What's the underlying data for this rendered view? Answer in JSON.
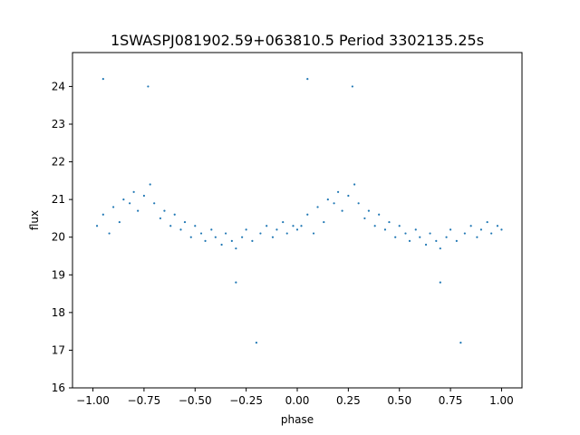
{
  "chart_data": {
    "type": "scatter",
    "title": "1SWASPJ081902.59+063810.5 Period 3302135.25s",
    "xlabel": "phase",
    "ylabel": "flux",
    "xlim": [
      -1.1,
      1.1
    ],
    "ylim": [
      16,
      24.9
    ],
    "xticks": [
      -1.0,
      -0.75,
      -0.5,
      -0.25,
      0.0,
      0.25,
      0.5,
      0.75,
      1.0
    ],
    "xtick_labels": [
      "−1.00",
      "−0.75",
      "−0.50",
      "−0.25",
      "0.00",
      "0.25",
      "0.50",
      "0.75",
      "1.00"
    ],
    "yticks": [
      16,
      17,
      18,
      19,
      20,
      21,
      22,
      23,
      24
    ],
    "ytick_labels": [
      "16",
      "17",
      "18",
      "19",
      "20",
      "21",
      "22",
      "23",
      "24"
    ],
    "grid": false,
    "legend": "none",
    "marker_color": "#1f77b4",
    "series": [
      {
        "points": [
          [
            -0.98,
            20.3
          ],
          [
            -0.95,
            20.6
          ],
          [
            -0.92,
            20.1
          ],
          [
            -0.9,
            20.8
          ],
          [
            -0.87,
            20.4
          ],
          [
            -0.85,
            21.0
          ],
          [
            -0.82,
            20.9
          ],
          [
            -0.8,
            21.2
          ],
          [
            -0.78,
            20.7
          ],
          [
            -0.75,
            21.1
          ],
          [
            -0.72,
            21.4
          ],
          [
            -0.7,
            20.9
          ],
          [
            -0.67,
            20.5
          ],
          [
            -0.65,
            20.7
          ],
          [
            -0.62,
            20.3
          ],
          [
            -0.6,
            20.6
          ],
          [
            -0.57,
            20.2
          ],
          [
            -0.55,
            20.4
          ],
          [
            -0.52,
            20.0
          ],
          [
            -0.5,
            20.3
          ],
          [
            -0.47,
            20.1
          ],
          [
            -0.45,
            19.9
          ],
          [
            -0.42,
            20.2
          ],
          [
            -0.4,
            20.0
          ],
          [
            -0.37,
            19.8
          ],
          [
            -0.35,
            20.1
          ],
          [
            -0.32,
            19.9
          ],
          [
            -0.3,
            19.7
          ],
          [
            -0.27,
            20.0
          ],
          [
            -0.25,
            20.2
          ],
          [
            -0.22,
            19.9
          ],
          [
            -0.2,
            17.2
          ],
          [
            -0.18,
            20.1
          ],
          [
            -0.15,
            20.3
          ],
          [
            -0.12,
            20.0
          ],
          [
            -0.1,
            20.2
          ],
          [
            -0.07,
            20.4
          ],
          [
            -0.05,
            20.1
          ],
          [
            -0.02,
            20.3
          ],
          [
            0.0,
            20.2
          ],
          [
            0.02,
            20.3
          ],
          [
            0.05,
            20.6
          ],
          [
            0.08,
            20.1
          ],
          [
            0.1,
            20.8
          ],
          [
            0.13,
            20.4
          ],
          [
            0.15,
            21.0
          ],
          [
            0.18,
            20.9
          ],
          [
            0.2,
            21.2
          ],
          [
            0.22,
            20.7
          ],
          [
            0.25,
            21.1
          ],
          [
            0.28,
            21.4
          ],
          [
            0.3,
            20.9
          ],
          [
            0.33,
            20.5
          ],
          [
            0.35,
            20.7
          ],
          [
            0.38,
            20.3
          ],
          [
            0.4,
            20.6
          ],
          [
            0.43,
            20.2
          ],
          [
            0.45,
            20.4
          ],
          [
            0.48,
            20.0
          ],
          [
            0.5,
            20.3
          ],
          [
            0.53,
            20.1
          ],
          [
            0.55,
            19.9
          ],
          [
            0.58,
            20.2
          ],
          [
            0.6,
            20.0
          ],
          [
            0.63,
            19.8
          ],
          [
            0.65,
            20.1
          ],
          [
            0.68,
            19.9
          ],
          [
            0.7,
            19.7
          ],
          [
            0.73,
            20.0
          ],
          [
            0.75,
            20.2
          ],
          [
            0.78,
            19.9
          ],
          [
            0.8,
            17.2
          ],
          [
            0.82,
            20.1
          ],
          [
            0.85,
            20.3
          ],
          [
            0.88,
            20.0
          ],
          [
            0.9,
            20.2
          ],
          [
            0.93,
            20.4
          ],
          [
            0.95,
            20.1
          ],
          [
            0.98,
            20.3
          ],
          [
            1.0,
            20.2
          ],
          [
            -0.95,
            24.2
          ],
          [
            -0.73,
            24.0
          ],
          [
            0.05,
            24.2
          ],
          [
            0.27,
            24.0
          ],
          [
            -0.3,
            18.8
          ],
          [
            0.7,
            18.8
          ]
        ]
      }
    ]
  }
}
